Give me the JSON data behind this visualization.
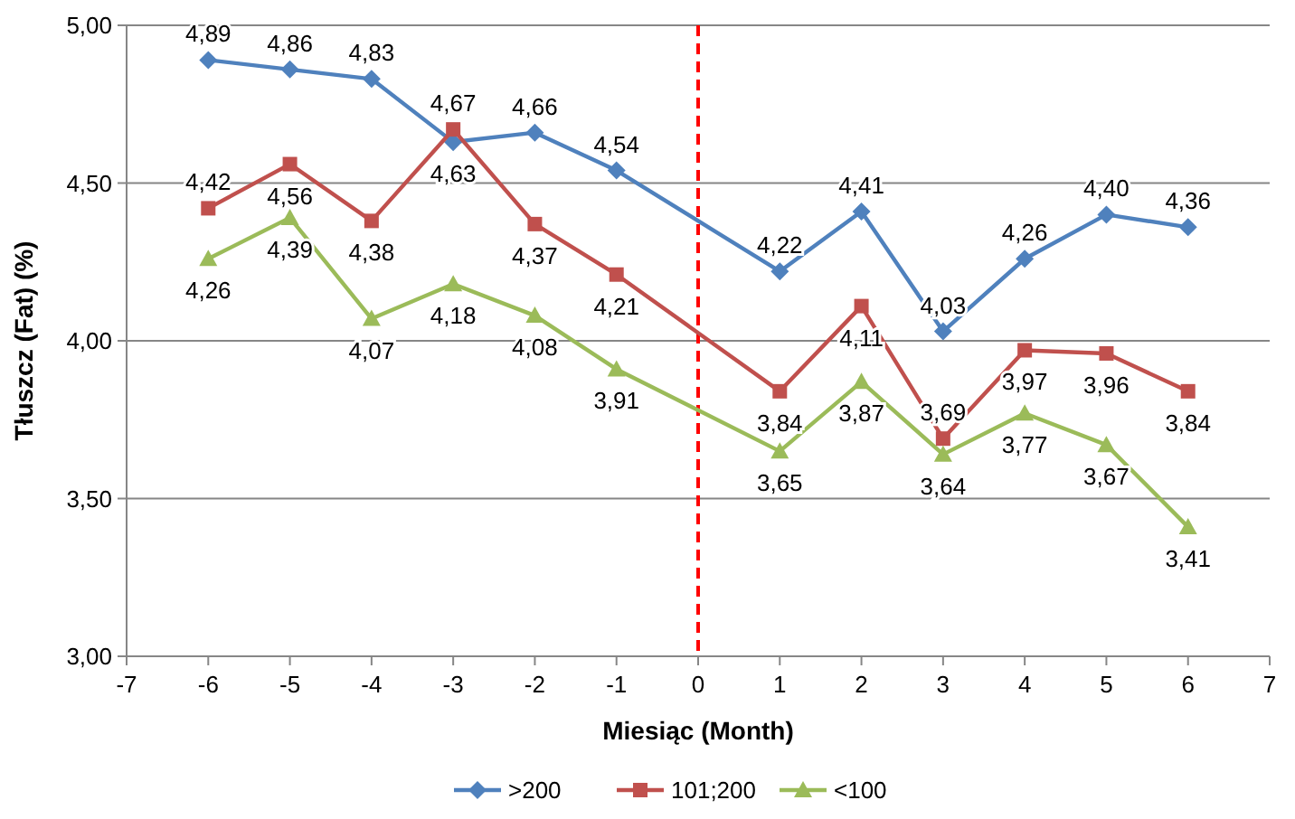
{
  "chart_data": {
    "type": "line",
    "xlabel": "Miesiąc (Month)",
    "ylabel": "Tłuszcz (Fat) (%)",
    "x": [
      -6,
      -5,
      -4,
      -3,
      -2,
      -1,
      1,
      2,
      3,
      4,
      5,
      6
    ],
    "xlim": [
      -7,
      7
    ],
    "xticks": [
      -7,
      -6,
      -5,
      -4,
      -3,
      -2,
      -1,
      0,
      1,
      2,
      3,
      4,
      5,
      6,
      7
    ],
    "ylim": [
      3,
      5
    ],
    "yticks": [
      {
        "value": 3,
        "label": "3,00"
      },
      {
        "value": 3.5,
        "label": "3,50"
      },
      {
        "value": 4,
        "label": "4,00"
      },
      {
        "value": 4.5,
        "label": "4,50"
      },
      {
        "value": 5,
        "label": "5,00"
      }
    ],
    "grid": "y",
    "legend": "bottom",
    "ref_lines": [
      {
        "axis": "x",
        "value": 0,
        "color": "#ff0000",
        "line_style": "dashed"
      }
    ],
    "series": [
      {
        "name": ">200",
        "color": "#4f81bd",
        "marker": "diamond",
        "values": [
          4.89,
          4.86,
          4.83,
          4.63,
          4.66,
          4.54,
          4.22,
          4.41,
          4.03,
          4.26,
          4.4,
          4.36
        ],
        "value_labels": [
          "4,89",
          "4,86",
          "4,83",
          "4,63",
          "4,66",
          "4,54",
          "4,22",
          "4,41",
          "4,03",
          "4,26",
          "4,40",
          "4,36"
        ]
      },
      {
        "name": "101;200",
        "color": "#c0504d",
        "marker": "square",
        "values": [
          4.42,
          4.56,
          4.38,
          4.67,
          4.37,
          4.21,
          3.84,
          4.11,
          3.69,
          3.97,
          3.96,
          3.84
        ],
        "value_labels": [
          "4,42",
          "4,56",
          "4,38",
          "4,67",
          "4,37",
          "4,21",
          "3,84",
          "4,11",
          "3,69",
          "3,97",
          "3,96",
          "3,84"
        ]
      },
      {
        "name": "<100",
        "color": "#9bbb59",
        "marker": "triangle",
        "values": [
          4.26,
          4.39,
          4.07,
          4.18,
          4.08,
          3.91,
          3.65,
          3.87,
          3.64,
          3.77,
          3.67,
          3.41
        ],
        "value_labels": [
          "4,26",
          "4,39",
          "4,07",
          "4,18",
          "4,08",
          "3,91",
          "3,65",
          "3,87",
          "3,64",
          "3,77",
          "3,67",
          "3,41"
        ]
      }
    ]
  }
}
